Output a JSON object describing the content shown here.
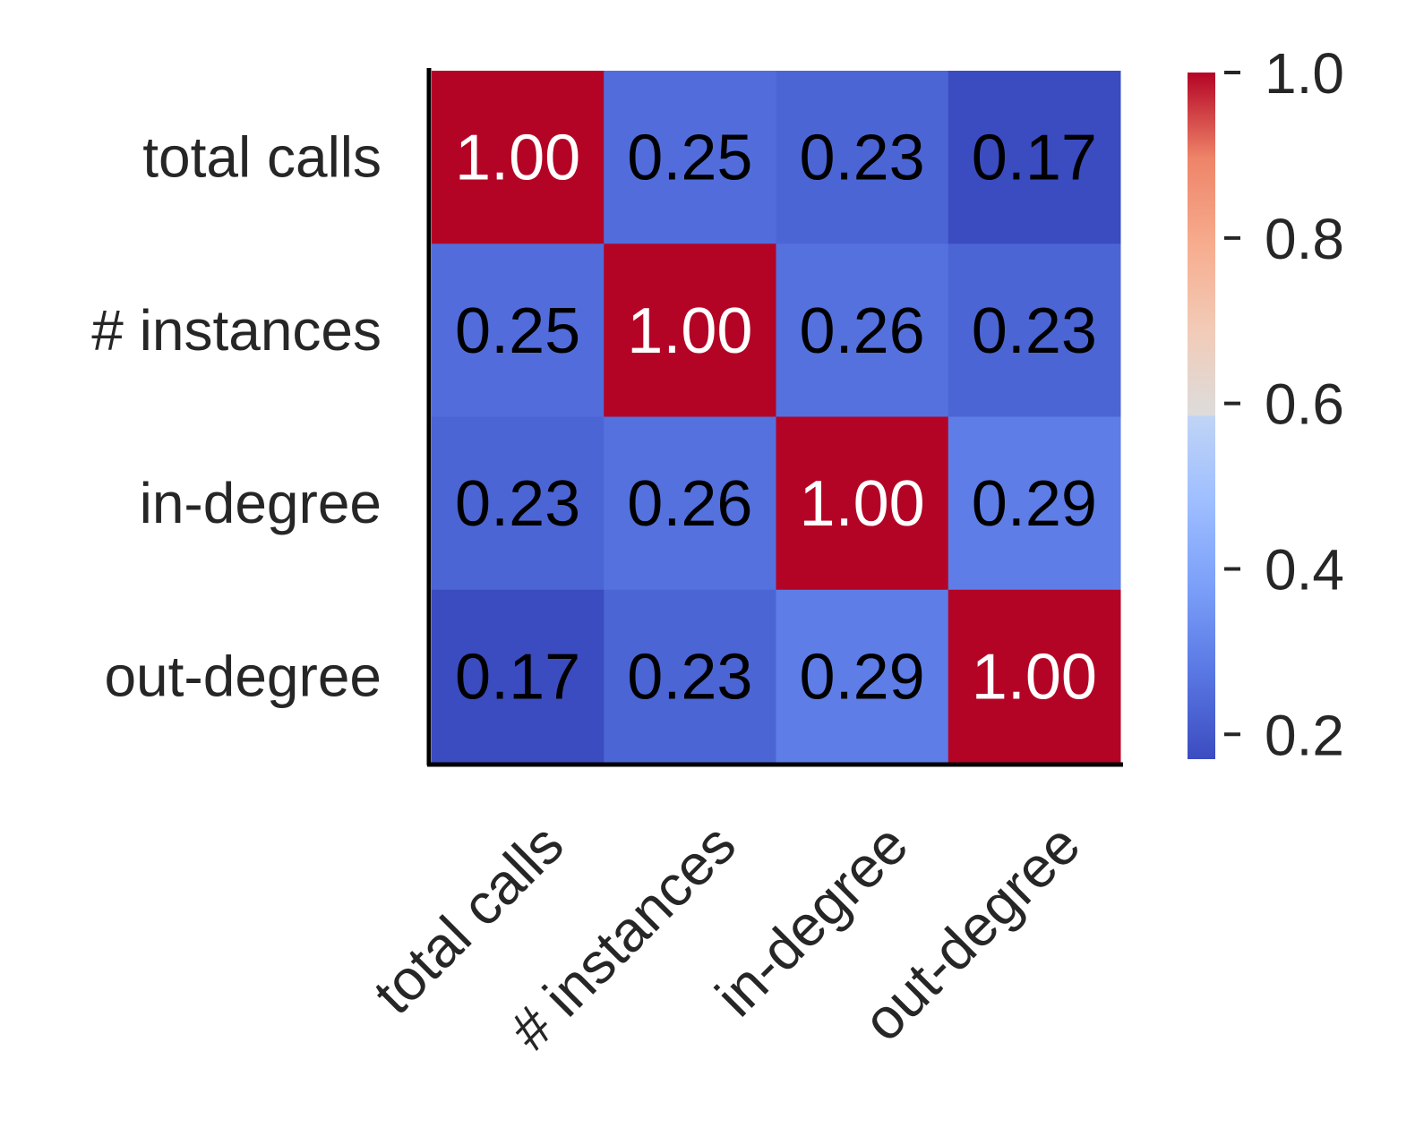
{
  "chart_data": {
    "type": "heatmap",
    "title": "",
    "xlabel": "",
    "ylabel": "",
    "rows": [
      "total calls",
      "# instances",
      "in-degree",
      "out-degree"
    ],
    "columns": [
      "total calls",
      "# instances",
      "in-degree",
      "out-degree"
    ],
    "values": [
      [
        1.0,
        0.25,
        0.23,
        0.17
      ],
      [
        0.25,
        1.0,
        0.26,
        0.23
      ],
      [
        0.23,
        0.26,
        1.0,
        0.29
      ],
      [
        0.17,
        0.23,
        0.29,
        1.0
      ]
    ],
    "value_labels": [
      [
        "1.00",
        "0.25",
        "0.23",
        "0.17"
      ],
      [
        "0.25",
        "1.00",
        "0.26",
        "0.23"
      ],
      [
        "0.23",
        "0.26",
        "1.00",
        "0.29"
      ],
      [
        "0.17",
        "0.23",
        "0.29",
        "1.00"
      ]
    ],
    "colormap": "coolwarm",
    "colorbar": {
      "range": [
        0.17,
        1.0
      ],
      "ticks": [
        0.2,
        0.4,
        0.6,
        0.8,
        1.0
      ],
      "tick_labels": [
        "0.2",
        "0.4",
        "0.6",
        "0.8",
        "1.0"
      ]
    },
    "x_tick_rotation_deg": 45,
    "text_colors": {
      "high": "#ffffff",
      "low": "#000000"
    },
    "colors": {
      "axis": "#000000",
      "label": "#262626"
    }
  }
}
